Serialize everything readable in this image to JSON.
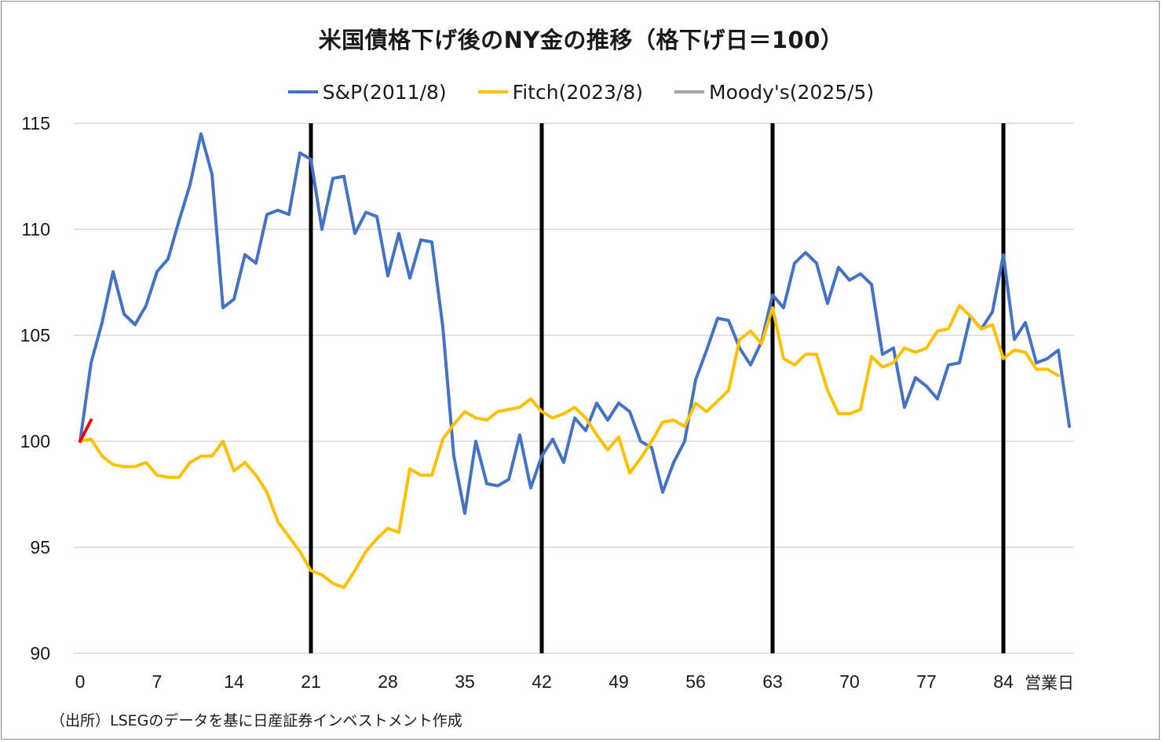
{
  "chart_data": {
    "type": "line",
    "title": "米国債格下げ後のNY金の推移（格下げ日＝100）",
    "xlabel": "営業日",
    "ylabel": "",
    "xlim": [
      0,
      90
    ],
    "ylim": [
      90,
      115
    ],
    "x_ticks": [
      0,
      7,
      14,
      21,
      28,
      35,
      42,
      49,
      56,
      63,
      70,
      77,
      84
    ],
    "y_ticks": [
      90,
      95,
      100,
      105,
      110,
      115
    ],
    "vertical_markers": [
      21,
      42,
      63,
      84
    ],
    "grid": true,
    "legend_position": "top",
    "series": [
      {
        "name": "S&P(2011/8)",
        "color": "#4472c4",
        "values": [
          100,
          103.7,
          105.6,
          108.0,
          106.0,
          105.5,
          106.4,
          108.0,
          108.6,
          110.4,
          112.1,
          114.5,
          112.6,
          106.3,
          106.7,
          108.8,
          108.4,
          110.7,
          110.9,
          110.7,
          113.6,
          113.3,
          110.0,
          112.4,
          112.5,
          109.8,
          110.8,
          110.6,
          107.8,
          109.8,
          107.7,
          109.5,
          109.4,
          105.4,
          99.3,
          96.6,
          100.0,
          98.0,
          97.9,
          98.2,
          100.3,
          97.8,
          99.3,
          100.1,
          99.0,
          101.1,
          100.5,
          101.8,
          101.0,
          101.8,
          101.4,
          100.0,
          99.7,
          97.6,
          99.0,
          100.0,
          102.9,
          104.3,
          105.8,
          105.7,
          104.4,
          103.6,
          104.7,
          106.9,
          106.3,
          108.4,
          108.9,
          108.4,
          106.5,
          108.2,
          107.6,
          107.9,
          107.4,
          104.1,
          104.4,
          101.6,
          103.0,
          102.6,
          102.0,
          103.6,
          103.7,
          105.9,
          105.3,
          106.1,
          108.8,
          104.8,
          105.6,
          103.7,
          103.9,
          104.3,
          100.7
        ]
      },
      {
        "name": "Fitch(2023/8)",
        "color": "#ffc000",
        "values": [
          100,
          100.1,
          99.3,
          98.9,
          98.8,
          98.8,
          99.0,
          98.4,
          98.3,
          98.3,
          99.0,
          99.3,
          99.3,
          100.0,
          98.6,
          99.0,
          98.4,
          97.6,
          96.2,
          95.5,
          94.8,
          93.9,
          93.7,
          93.3,
          93.1,
          93.9,
          94.8,
          95.4,
          95.9,
          95.7,
          98.7,
          98.4,
          98.4,
          100.1,
          100.8,
          101.4,
          101.1,
          101.0,
          101.4,
          101.5,
          101.6,
          102.0,
          101.4,
          101.1,
          101.3,
          101.6,
          101.1,
          100.3,
          99.6,
          100.2,
          98.5,
          99.2,
          100.0,
          100.9,
          101.0,
          100.7,
          101.8,
          101.4,
          101.9,
          102.4,
          104.8,
          105.2,
          104.6,
          106.3,
          103.9,
          103.6,
          104.1,
          104.1,
          102.4,
          101.3,
          101.3,
          101.5,
          104.0,
          103.5,
          103.7,
          104.4,
          104.2,
          104.4,
          105.2,
          105.3,
          106.4,
          105.9,
          105.3,
          105.5,
          103.9,
          104.3,
          104.2,
          103.4,
          103.4,
          103.1
        ]
      },
      {
        "name": "Moody's(2025/5)",
        "color": "#a5a5a5",
        "values": []
      },
      {
        "name": "",
        "color": "#ff0000",
        "values": [
          100,
          101.0
        ]
      }
    ]
  },
  "source_note": "（出所）LSEGのデータを基に日産証券インベストメント作成"
}
